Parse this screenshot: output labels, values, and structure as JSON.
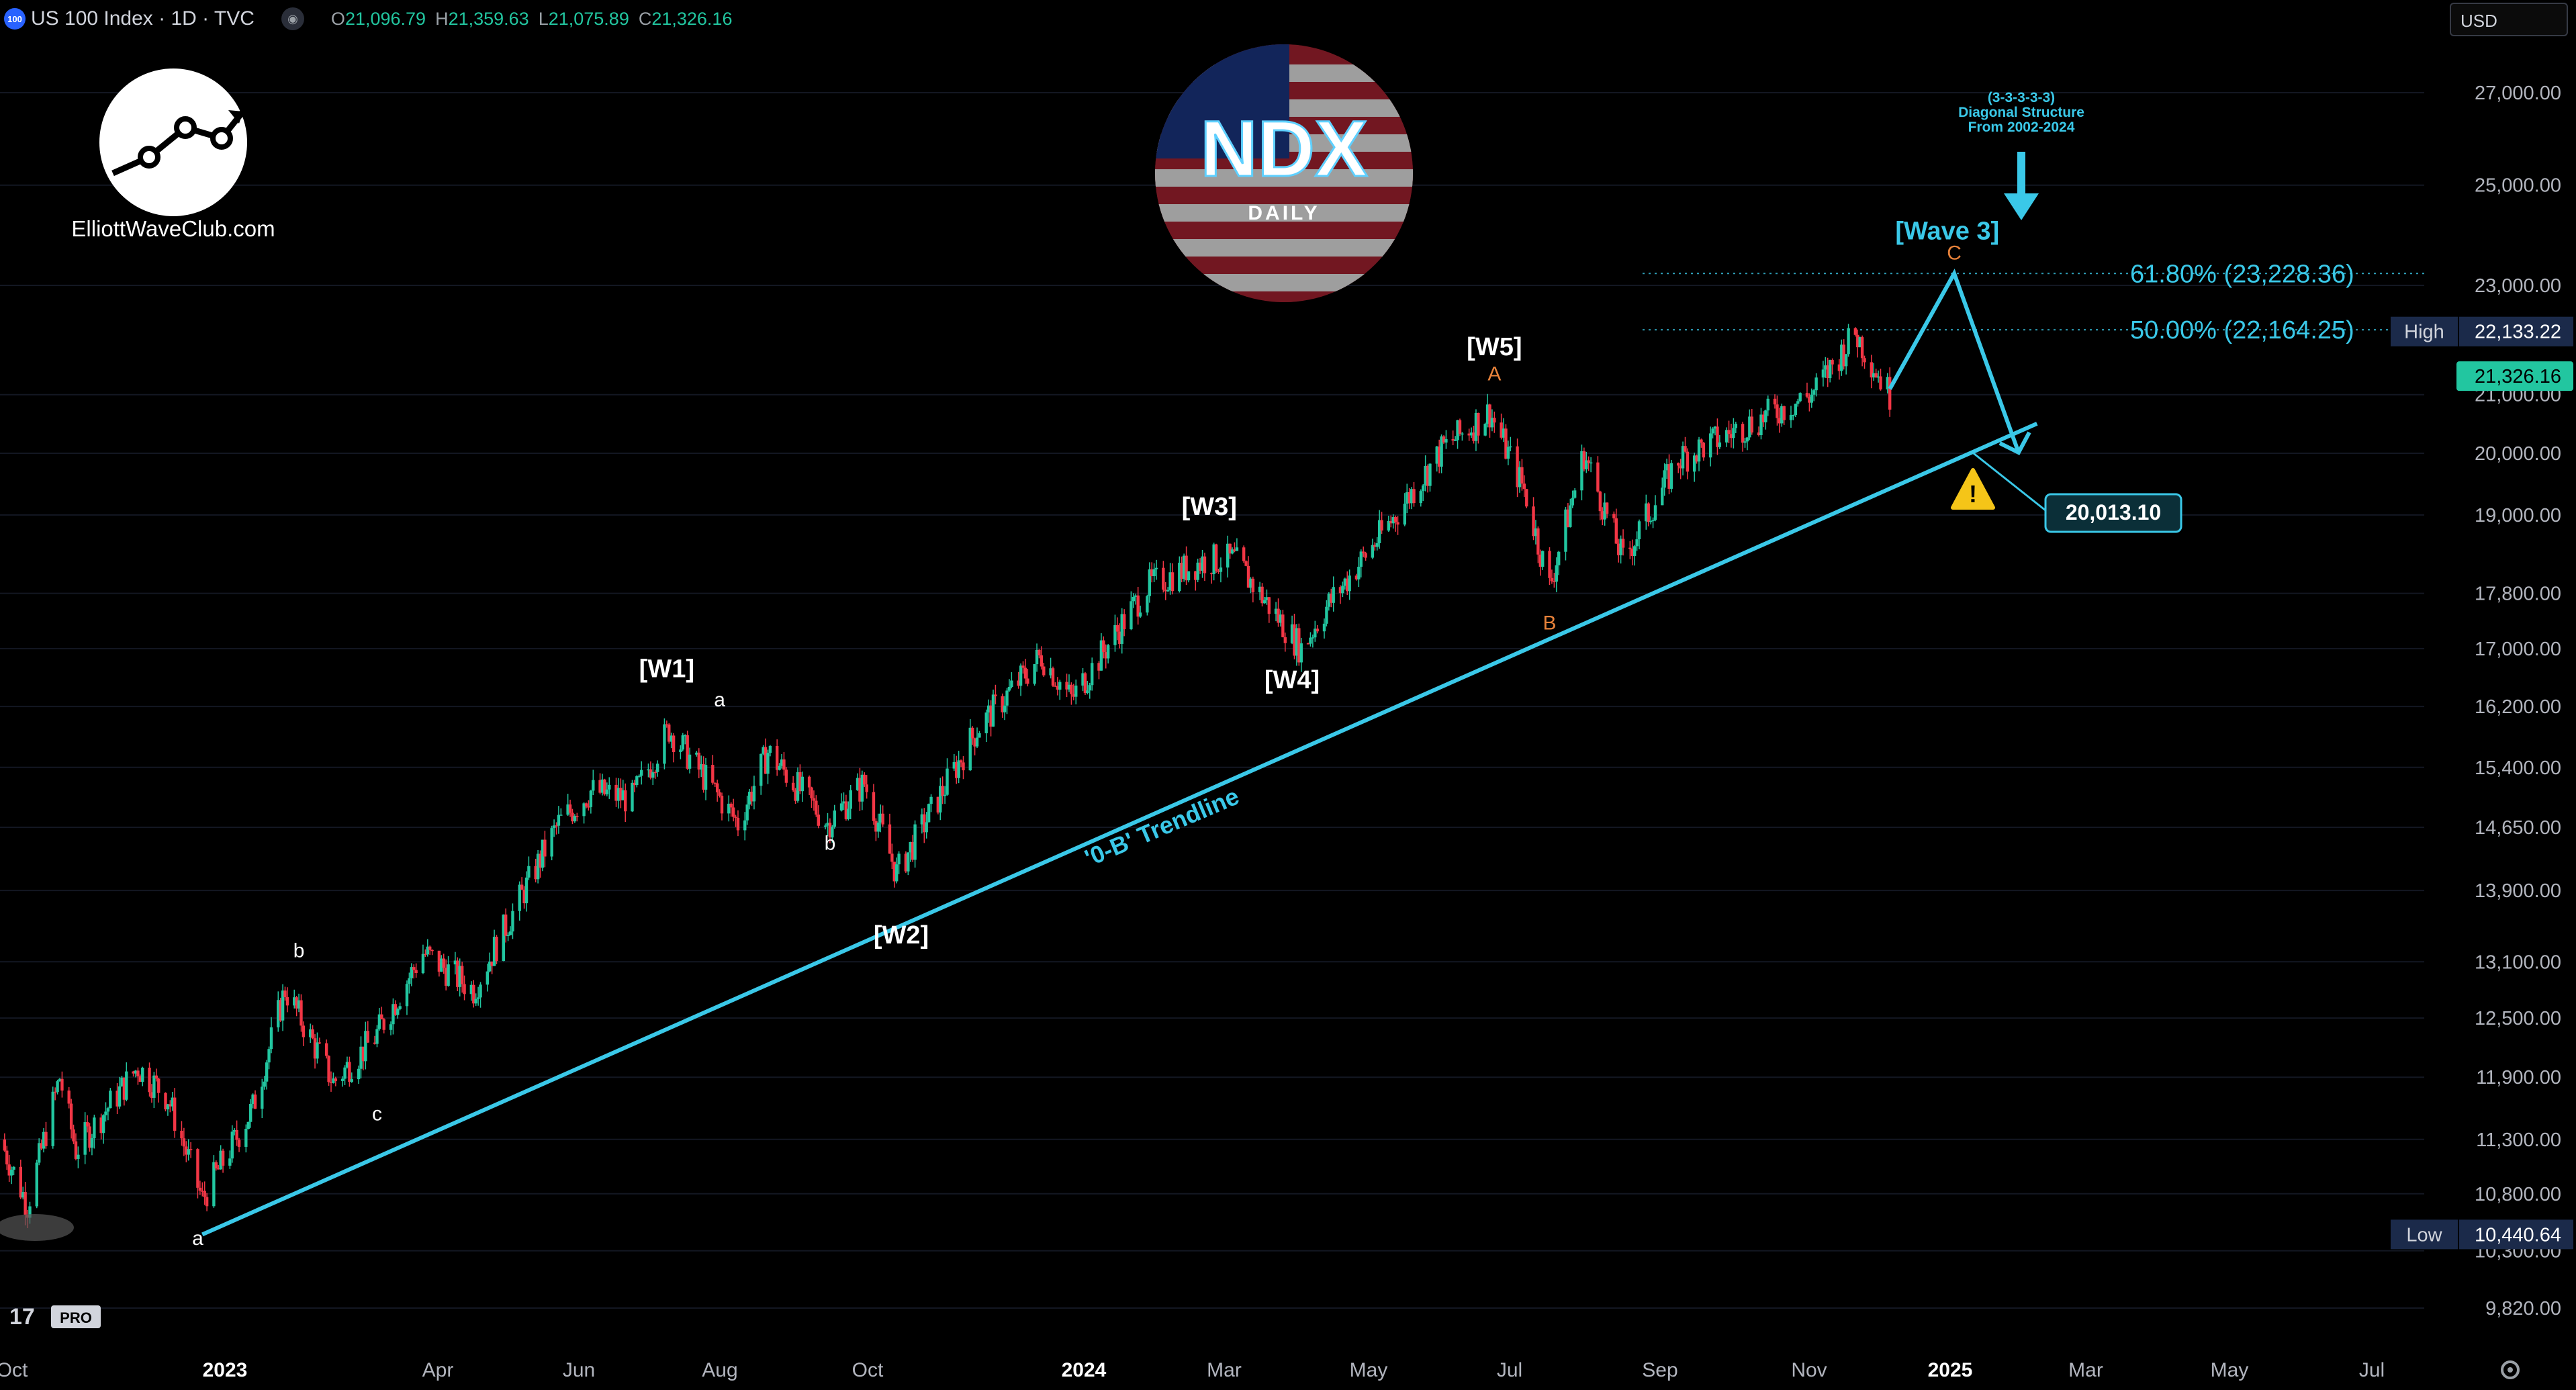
{
  "header": {
    "symbol_badge": "100",
    "title": "US 100 Index · 1D · TVC",
    "open_label": "O",
    "open": "21,096.79",
    "high_label": "H",
    "high": "21,359.63",
    "low_label": "L",
    "low": "21,075.89",
    "close_label": "C",
    "close": "21,326.16"
  },
  "currency": "USD",
  "brand": {
    "site": "ElliottWaveClub.com",
    "badge_main": "NDX",
    "badge_sub": "DAILY",
    "tv_pro": "PRO"
  },
  "colors": {
    "up": "#22c6a0",
    "down": "#f23645",
    "trend": "#3ac8e8",
    "orange": "#e8823a",
    "label_bg": "#0e3a44"
  },
  "chart_data": {
    "type": "line",
    "title": "",
    "y_scale": "log",
    "ylim": [
      9500,
      28500
    ],
    "y_ticks": [
      "27,000.00",
      "25,000.00",
      "23,000.00",
      "21,000.00",
      "20,000.00",
      "19,000.00",
      "17,800.00",
      "17,000.00",
      "16,200.00",
      "15,400.00",
      "14,650.00",
      "13,900.00",
      "13,100.00",
      "12,500.00",
      "11,900.00",
      "11,300.00",
      "10,800.00",
      "10,300.00",
      "9,820.00"
    ],
    "x_ticks": [
      "Oct",
      "2023",
      "Apr",
      "Jun",
      "Aug",
      "Oct",
      "2024",
      "Mar",
      "May",
      "Jul",
      "Sep",
      "Nov",
      "2025",
      "Mar",
      "May",
      "Jul"
    ],
    "price_series": {
      "name": "US 100 Index",
      "x": [
        "2022-10-01",
        "2022-10-13",
        "2022-10-27",
        "2022-11-03",
        "2022-11-30",
        "2022-12-13",
        "2022-12-28",
        "2023-01-19",
        "2023-02-02",
        "2023-02-13",
        "2023-02-23",
        "2023-03-13",
        "2023-04-03",
        "2023-04-25",
        "2023-06-01",
        "2023-06-15",
        "2023-07-03",
        "2023-07-19",
        "2023-08-18",
        "2023-08-31",
        "2023-09-26",
        "2023-10-12",
        "2023-10-26",
        "2023-11-30",
        "2023-12-28",
        "2024-01-10",
        "2024-02-12",
        "2024-03-08",
        "2024-03-21",
        "2024-04-19",
        "2024-04-30",
        "2024-05-28",
        "2024-06-20",
        "2024-07-10",
        "2024-07-25",
        "2024-08-05",
        "2024-08-20",
        "2024-09-06",
        "2024-09-30",
        "2024-10-31",
        "2024-11-27",
        "2024-12-16",
        "2024-12-31"
      ],
      "values": [
        11300,
        10700,
        11900,
        11200,
        12000,
        11700,
        10750,
        11600,
        12800,
        12300,
        11850,
        12300,
        13200,
        12800,
        14700,
        15100,
        15000,
        15900,
        14700,
        15600,
        14700,
        15200,
        14100,
        15900,
        16900,
        16300,
        17900,
        18300,
        18300,
        17000,
        17600,
        18900,
        20100,
        20700,
        19400,
        17900,
        20000,
        18300,
        19900,
        20500,
        21000,
        22100,
        21000
      ]
    },
    "projection": {
      "x": [
        "2024-12-31",
        "2025-01-28",
        "2025-02-25"
      ],
      "values": [
        21100,
        23228.36,
        20013.1
      ]
    },
    "trendline": {
      "label": "'0-B' Trendline",
      "x": [
        "2022-12-28",
        "2025-03-05"
      ],
      "values": [
        10440.64,
        20500
      ]
    },
    "fib_levels": [
      {
        "label": "61.80% (23,228.36)",
        "value": 23228.36
      },
      {
        "label": "50.00% (22,164.25)",
        "value": 22164.25
      }
    ],
    "price_labels": [
      {
        "tag": "High",
        "value": "22,133.22"
      },
      {
        "tag": "",
        "value": "21,326.16"
      },
      {
        "tag": "Low",
        "value": "10,440.64"
      }
    ],
    "target_label": "20,013.10",
    "annotation_note": [
      "(3-3-3-3-3)",
      "Diagonal Structure",
      "From 2002-2024"
    ],
    "wave_labels": [
      {
        "text": "[W1]",
        "x": "2023-07-18",
        "y": 16600
      },
      {
        "text": "[W2]",
        "x": "2023-10-28",
        "y": 13300
      },
      {
        "text": "[W3]",
        "x": "2024-03-10",
        "y": 19000
      },
      {
        "text": "[W4]",
        "x": "2024-04-15",
        "y": 16450
      },
      {
        "text": "[W5]",
        "x": "2024-07-12",
        "y": 21700
      },
      {
        "text": "[Wave 3]",
        "x": "2025-01-25",
        "y": 23900
      },
      {
        "text": "a",
        "x": "2022-12-26",
        "y": 10350
      },
      {
        "text": "b",
        "x": "2023-02-08",
        "y": 13150
      },
      {
        "text": "c",
        "x": "2023-03-14",
        "y": 11480
      },
      {
        "text": "a",
        "x": "2023-08-10",
        "y": 16200
      },
      {
        "text": "b",
        "x": "2023-09-27",
        "y": 14380
      },
      {
        "text": "A",
        "x": "2024-07-12",
        "y": 21250
      },
      {
        "text": "B",
        "x": "2024-08-05",
        "y": 17270
      },
      {
        "text": "C",
        "x": "2025-01-28",
        "y": 23500
      }
    ]
  }
}
